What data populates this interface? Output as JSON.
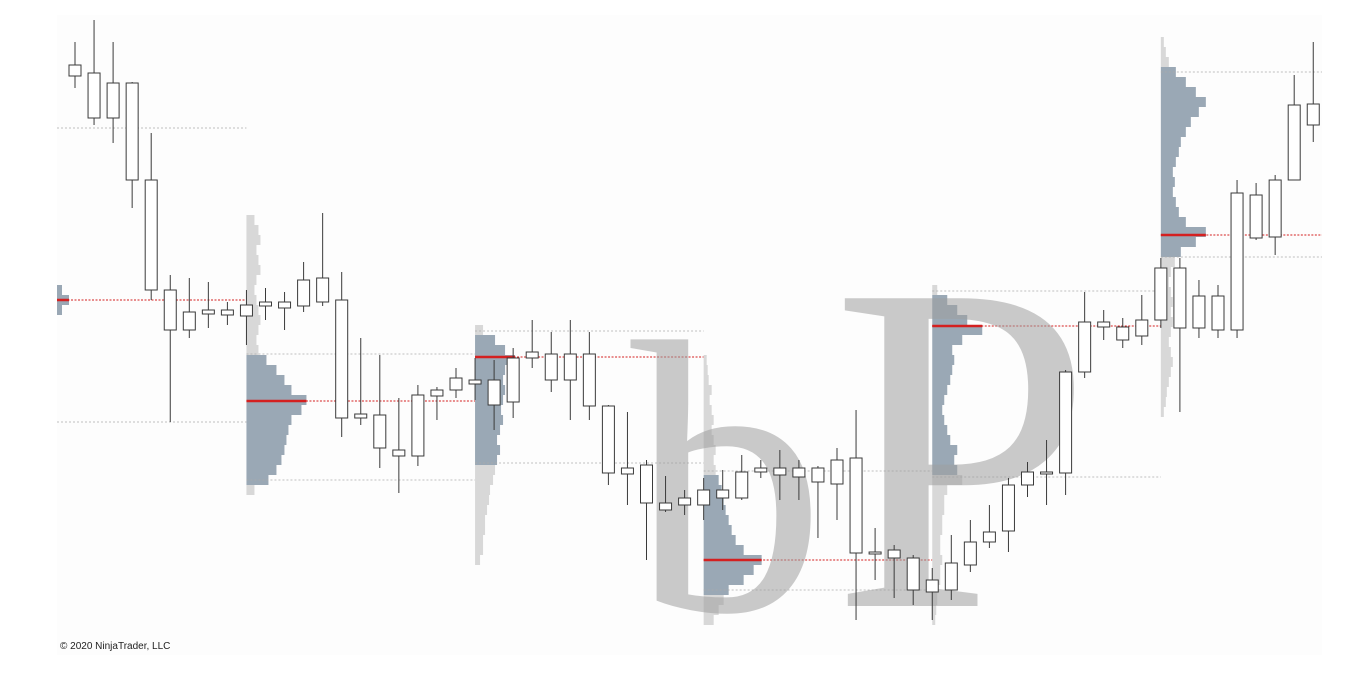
{
  "chart_data": {
    "type": "candlestick",
    "categories": [
      null,
      null,
      null,
      null,
      null,
      null,
      null,
      null,
      null,
      null,
      null,
      null,
      null,
      null,
      null,
      null,
      null,
      null,
      null,
      null,
      null,
      null,
      null,
      null,
      null,
      null,
      null,
      null,
      null,
      null,
      null,
      null,
      null,
      null,
      null,
      null,
      null,
      null,
      null,
      null,
      null,
      null,
      null,
      null,
      null,
      null,
      null,
      null,
      null,
      null,
      null,
      null,
      null,
      null,
      null,
      null,
      null,
      null,
      null,
      null,
      null,
      null,
      null,
      null,
      null,
      null
    ],
    "open": [
      579,
      582,
      572,
      572,
      475,
      365,
      343,
      345,
      345,
      350,
      353,
      353,
      375,
      377,
      355,
      241,
      240,
      205,
      260,
      265,
      277,
      275,
      275,
      297,
      303,
      301,
      301,
      301,
      249,
      187,
      190,
      152,
      157,
      165,
      157,
      157,
      183,
      180,
      178,
      173,
      171,
      102,
      101,
      97,
      65,
      63,
      65,
      90,
      113,
      124,
      170,
      181,
      182,
      283,
      328,
      315,
      319,
      335,
      327,
      327,
      325,
      325,
      417,
      418,
      475,
      530
    ],
    "high": [
      613,
      635,
      613,
      573,
      522,
      380,
      377,
      373,
      353,
      365,
      367,
      363,
      393,
      442,
      383,
      317,
      300,
      257,
      270,
      268,
      287,
      297,
      295,
      307,
      335,
      323,
      335,
      323,
      250,
      243,
      195,
      179,
      165,
      177,
      185,
      200,
      195,
      205,
      195,
      189,
      207,
      245,
      127,
      110,
      100,
      87,
      120,
      135,
      150,
      177,
      193,
      215,
      285,
      363,
      345,
      337,
      360,
      397,
      397,
      375,
      370,
      475,
      472,
      480,
      580,
      613
    ],
    "low": [
      567,
      530,
      512,
      447,
      355,
      233,
      317,
      327,
      330,
      310,
      335,
      325,
      343,
      349,
      218,
      230,
      187,
      162,
      189,
      235,
      257,
      255,
      225,
      237,
      287,
      263,
      235,
      235,
      170,
      150,
      95,
      143,
      140,
      135,
      145,
      155,
      177,
      155,
      155,
      117,
      135,
      35,
      75,
      57,
      50,
      35,
      55,
      83,
      107,
      103,
      158,
      150,
      160,
      277,
      315,
      307,
      310,
      327,
      243,
      317,
      317,
      317,
      415,
      400,
      475,
      513
    ],
    "close": [
      590,
      537,
      537,
      475,
      365,
      325,
      325,
      341,
      340,
      339,
      349,
      347,
      349,
      353,
      237,
      237,
      207,
      199,
      199,
      259,
      265,
      271,
      250,
      253,
      297,
      275,
      275,
      249,
      182,
      181,
      152,
      145,
      150,
      150,
      165,
      183,
      187,
      187,
      187,
      187,
      195,
      197,
      103,
      105,
      97,
      75,
      92,
      113,
      123,
      170,
      183,
      183,
      283,
      333,
      333,
      328,
      335,
      387,
      387,
      359,
      359,
      462,
      460,
      475,
      550,
      551
    ],
    "ylim": [
      0,
      640
    ],
    "color": "#3a3a3a",
    "profiles": [
      {
        "start": -1,
        "end": 9,
        "poc": 355,
        "vah": 527,
        "val": 233,
        "bin_start": 345,
        "bin_step": 10,
        "volumes": [
          5,
          12,
          5
        ]
      },
      {
        "start": 9,
        "end": 21,
        "poc": 254,
        "vah": 301,
        "val": 175,
        "bin_start": 165,
        "bin_step": 10,
        "volumes": [
          8,
          22,
          30,
          35,
          38,
          40,
          42,
          45,
          55,
          60,
          45,
          38,
          30,
          20,
          12,
          10,
          12,
          14,
          12,
          10,
          8,
          10,
          14,
          12,
          10,
          14,
          12,
          8
        ]
      },
      {
        "start": 21,
        "end": 33,
        "poc": 298,
        "vah": 324,
        "val": 192,
        "bin_start": 95,
        "bin_step": 10,
        "volumes": [
          5,
          8,
          8,
          10,
          10,
          12,
          14,
          15,
          18,
          20,
          22,
          25,
          22,
          25,
          28,
          26,
          28,
          30,
          28,
          30,
          40,
          30,
          20,
          8
        ]
      },
      {
        "start": 33,
        "end": 45,
        "poc": 95,
        "vah": 184,
        "val": 65,
        "bin_start": 35,
        "bin_step": 10,
        "volumes": [
          10,
          15,
          20,
          25,
          40,
          50,
          58,
          40,
          32,
          28,
          25,
          22,
          20,
          18,
          15,
          12,
          10,
          12,
          10,
          8,
          10,
          8,
          6,
          8,
          5,
          4,
          3
        ]
      },
      {
        "start": 45,
        "end": 57,
        "poc": 329,
        "vah": 364,
        "val": 178,
        "bin_start": 35,
        "bin_step": 10,
        "volumes": [
          3,
          4,
          5,
          5,
          8,
          8,
          10,
          8,
          8,
          10,
          10,
          12,
          12,
          15,
          30,
          25,
          22,
          25,
          18,
          15,
          12,
          10,
          12,
          15,
          18,
          20,
          22,
          20,
          30,
          50,
          35,
          25,
          15,
          5
        ]
      },
      {
        "start": 57,
        "end": 65.5,
        "poc": 420,
        "vah": 583,
        "val": 398,
        "bin_start": 243,
        "bin_step": 10,
        "volumes": [
          3,
          5,
          6,
          8,
          10,
          12,
          10,
          8,
          10,
          12,
          10,
          12,
          10,
          8,
          10,
          14,
          20,
          35,
          45,
          25,
          18,
          15,
          12,
          14,
          12,
          15,
          18,
          20,
          25,
          30,
          38,
          45,
          35,
          25,
          15,
          8,
          5,
          3
        ]
      }
    ],
    "annotations": [
      "b",
      "P"
    ],
    "copyright": "© 2020 NinjaTrader, LLC"
  }
}
